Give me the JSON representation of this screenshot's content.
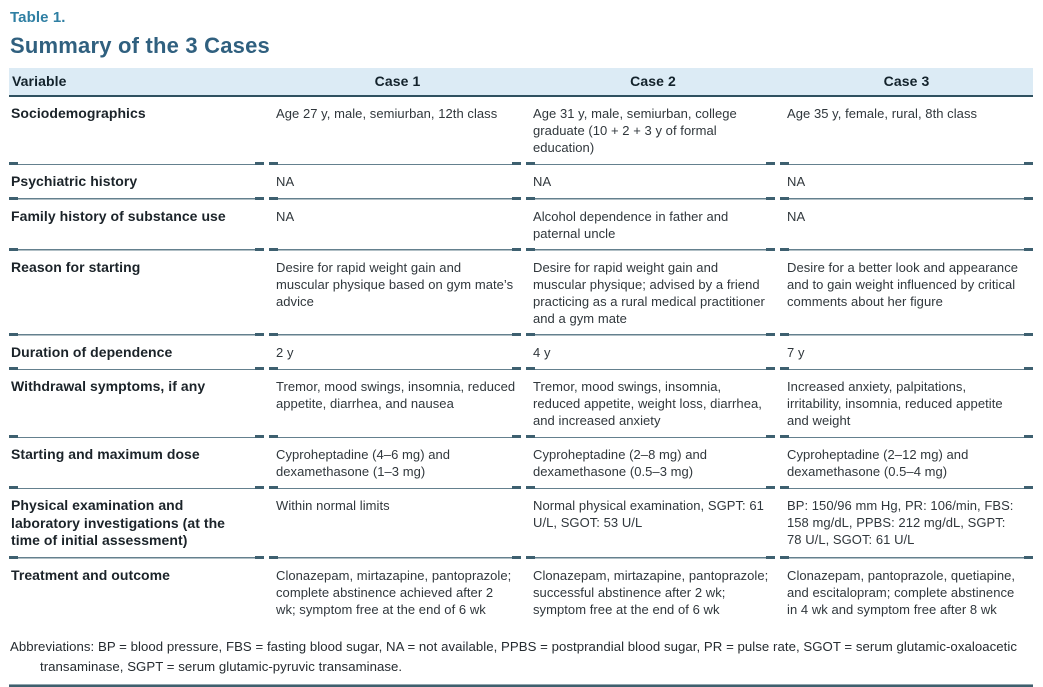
{
  "table_label": "Table 1.",
  "title": "Summary of the 3 Cases",
  "columns": [
    "Variable",
    "Case 1",
    "Case 2",
    "Case 3"
  ],
  "rows": [
    {
      "variable": "Sociodemographics",
      "case1": "Age 27 y, male, semiurban, 12th class",
      "case2": "Age 31 y, male, semiurban, college graduate (10 + 2 + 3 y of formal education)",
      "case3": "Age 35 y, female, rural, 8th class"
    },
    {
      "variable": "Psychiatric history",
      "case1": "NA",
      "case2": "NA",
      "case3": "NA"
    },
    {
      "variable": "Family history of substance use",
      "case1": "NA",
      "case2": "Alcohol dependence in father and paternal uncle",
      "case3": "NA"
    },
    {
      "variable": "Reason for starting",
      "case1": "Desire for rapid weight gain and muscular physique based on gym mate’s advice",
      "case2": "Desire for rapid weight gain and muscular physique; advised by a friend practicing as a rural medical practitioner and a gym mate",
      "case3": "Desire for a better look and appearance and to gain weight influenced by critical comments about her figure"
    },
    {
      "variable": "Duration of dependence",
      "case1": "2 y",
      "case2": "4 y",
      "case3": "7 y"
    },
    {
      "variable": "Withdrawal symptoms, if any",
      "case1": "Tremor, mood swings, insomnia, reduced appetite, diarrhea, and nausea",
      "case2": "Tremor, mood swings, insomnia, reduced appetite, weight loss, diarrhea, and increased anxiety",
      "case3": "Increased anxiety, palpitations, irritability, insomnia, reduced appetite and weight"
    },
    {
      "variable": "Starting and maximum dose",
      "case1": "Cyproheptadine (4–6 mg) and dexamethasone (1–3 mg)",
      "case2": "Cyproheptadine (2–8 mg) and dexamethasone (0.5–3 mg)",
      "case3": "Cyproheptadine (2–12 mg) and dexamethasone (0.5–4 mg)"
    },
    {
      "variable": "Physical examination and laboratory investigations (at the time of initial assessment)",
      "case1": "Within normal limits",
      "case2": "Normal physical examination, SGPT: 61 U/L, SGOT: 53 U/L",
      "case3": "BP: 150/96 mm Hg, PR: 106/min, FBS: 158 mg/dL, PPBS: 212 mg/dL, SGPT: 78 U/L, SGOT: 61 U/L"
    },
    {
      "variable": "Treatment and outcome",
      "case1": "Clonazepam, mirtazapine, pantoprazole; complete abstinence achieved after 2 wk; symptom free at the end of 6 wk",
      "case2": "Clonazepam, mirtazapine, pantoprazole; successful abstinence after 2 wk; symptom free at the end of 6 wk",
      "case3": "Clonazepam, pantoprazole, quetiapine, and escitalopram; complete abstinence in 4 wk and symptom free after 8 wk"
    }
  ],
  "footnote": "Abbreviations: BP = blood pressure, FBS = fasting blood sugar, NA = not available, PPBS = postprandial blood sugar, PR = pulse rate, SGOT = serum glutamic-oxaloacetic transaminase, SGPT = serum glutamic-pyruvic transaminase.",
  "colors": {
    "table_label": "#2f7fa3",
    "title": "#30607f",
    "header_background": "#dcebf5",
    "header_text": "#13222b",
    "header_rule": "#2f5160",
    "row_rule": "#64808e",
    "row_rule_caps": "#3e6070",
    "body_text": "#30373c"
  }
}
